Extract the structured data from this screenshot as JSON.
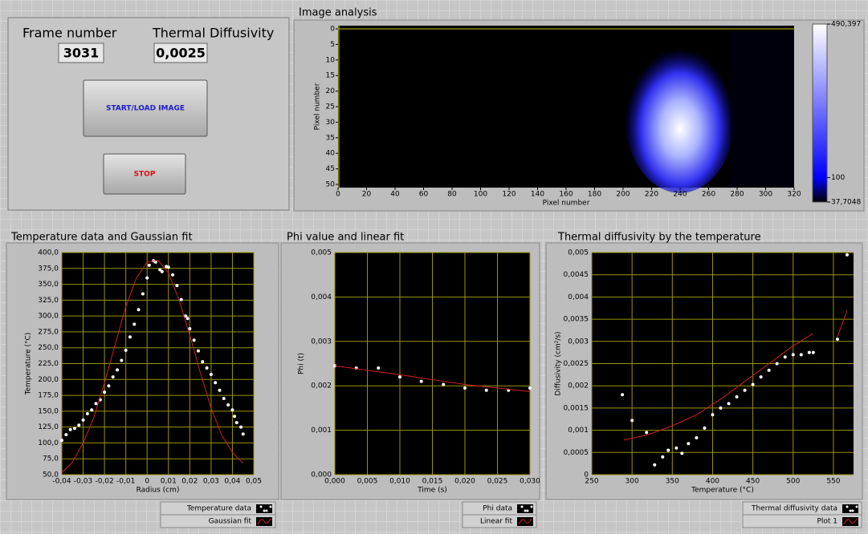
{
  "controls": {
    "frame_number": {
      "label": "Frame number",
      "value": "3031"
    },
    "thermal_diffusivity": {
      "label": "Thermal Diffusivity",
      "value": "0,0025"
    },
    "buttons": [
      "START/LOAD IMAGE",
      "STOP"
    ]
  },
  "chart_data": [
    {
      "type": "heatmap",
      "title": "Image analysis",
      "xlabel": "Pixel number",
      "ylabel": "Pixel number",
      "xlim": [
        0,
        320
      ],
      "xticks": [
        0,
        20,
        40,
        60,
        80,
        100,
        120,
        140,
        160,
        180,
        200,
        220,
        240,
        260,
        280,
        300,
        320
      ],
      "ylim": [
        0,
        50
      ],
      "y_inverted": true,
      "yticks": [
        0,
        5,
        10,
        15,
        20,
        25,
        30,
        35,
        40,
        45,
        50
      ],
      "grid": false,
      "zlim": [
        37.7048,
        490.397
      ],
      "zticks": [
        {
          "value": 37.7048,
          "label": "37,7048"
        },
        100,
        {
          "value": 490.397,
          "label": "490,397"
        }
      ],
      "colormap": [
        "#000000",
        "#0000ff",
        "#ffffff"
      ]
    },
    {
      "type": "scatter",
      "title": "Temperature data and Gaussian fit",
      "xlabel": "Radius (cm)",
      "ylabel": "Temperature (°C)",
      "xlim": [
        -0.04,
        0.05
      ],
      "xticks": [
        {
          "value": -0.04,
          "label": "-0,04"
        },
        {
          "value": -0.03,
          "label": "-0,03"
        },
        {
          "value": -0.02,
          "label": "-0,02"
        },
        {
          "value": -0.01,
          "label": "-0,01"
        },
        0,
        {
          "value": 0.01,
          "label": "0,01"
        },
        {
          "value": 0.02,
          "label": "0,02"
        },
        {
          "value": 0.03,
          "label": "0,03"
        },
        {
          "value": 0.04,
          "label": "0,04"
        },
        {
          "value": 0.05,
          "label": "0,05"
        }
      ],
      "ylim": [
        50,
        400
      ],
      "yticks": [
        {
          "value": 50,
          "label": "50,0"
        },
        {
          "value": 75,
          "label": "75,0"
        },
        {
          "value": 100,
          "label": "100,0"
        },
        {
          "value": 125,
          "label": "125,0"
        },
        {
          "value": 150,
          "label": "150,0"
        },
        {
          "value": 175,
          "label": "175,0"
        },
        {
          "value": 200,
          "label": "200,0"
        },
        {
          "value": 225,
          "label": "225,0"
        },
        {
          "value": 250,
          "label": "250,0"
        },
        {
          "value": 275,
          "label": "275,0"
        },
        {
          "value": 300,
          "label": "300,0"
        },
        {
          "value": 325,
          "label": "325,0"
        },
        {
          "value": 350,
          "label": "350,0"
        },
        {
          "value": 375,
          "label": "375,0"
        },
        {
          "value": 400,
          "label": "400,0"
        }
      ],
      "grid": true,
      "series": [
        {
          "name": "Temperature data",
          "style": "markers",
          "color": "#ffffff",
          "x": [
            -0.04,
            -0.038,
            -0.036,
            -0.034,
            -0.032,
            -0.03,
            -0.028,
            -0.026,
            -0.024,
            -0.022,
            -0.02,
            -0.018,
            -0.016,
            -0.014,
            -0.012,
            -0.01,
            -0.008,
            -0.006,
            -0.004,
            -0.002,
            0,
            0.001,
            0.003,
            0.004,
            0.006,
            0.007,
            0.009,
            0.01,
            0.012,
            0.014,
            0.016,
            0.018,
            0.019,
            0.02,
            0.022,
            0.024,
            0.026,
            0.028,
            0.03,
            0.032,
            0.034,
            0.036,
            0.038,
            0.04,
            0.041,
            0.042,
            0.044,
            0.045
          ],
          "values": [
            104,
            113,
            121,
            123,
            128,
            136,
            146,
            152,
            162,
            168,
            180,
            190,
            204,
            215,
            230,
            246,
            267,
            287,
            310,
            335,
            360,
            380,
            387,
            385,
            373,
            370,
            378,
            377,
            365,
            348,
            326,
            300,
            296,
            280,
            262,
            245,
            228,
            218,
            208,
            195,
            183,
            170,
            160,
            152,
            142,
            132,
            125,
            114
          ]
        },
        {
          "name": "Gaussian fit",
          "style": "line",
          "color": "#d02020",
          "x": [
            -0.04,
            -0.035,
            -0.03,
            -0.025,
            -0.02,
            -0.015,
            -0.01,
            -0.005,
            0,
            0.005,
            0.01,
            0.015,
            0.02,
            0.025,
            0.03,
            0.035,
            0.04,
            0.045
          ],
          "values": [
            53,
            70,
            100,
            140,
            195,
            255,
            315,
            360,
            385,
            388,
            368,
            325,
            270,
            210,
            155,
            112,
            85,
            68
          ]
        }
      ]
    },
    {
      "type": "scatter",
      "title": "Phi value and linear fit",
      "xlabel": "Time (s)",
      "ylabel": "Phi (t)",
      "xlim": [
        0,
        0.03
      ],
      "xticks": [
        {
          "value": 0,
          "label": "0,000"
        },
        {
          "value": 0.005,
          "label": "0,005"
        },
        {
          "value": 0.01,
          "label": "0,010"
        },
        {
          "value": 0.015,
          "label": "0,015"
        },
        {
          "value": 0.02,
          "label": "0,020"
        },
        {
          "value": 0.025,
          "label": "0,025"
        },
        {
          "value": 0.03,
          "label": "0,030"
        }
      ],
      "ylim": [
        0,
        0.005
      ],
      "yticks": [
        {
          "value": 0,
          "label": "0,000"
        },
        {
          "value": 0.001,
          "label": "0,001"
        },
        {
          "value": 0.002,
          "label": "0,002"
        },
        {
          "value": 0.003,
          "label": "0,003"
        },
        {
          "value": 0.004,
          "label": "0,004"
        },
        {
          "value": 0.005,
          "label": "0,005"
        }
      ],
      "grid": true,
      "series": [
        {
          "name": "Phi data",
          "style": "markers",
          "color": "#ffffff",
          "x": [
            0,
            0.0033,
            0.0067,
            0.01,
            0.0133,
            0.0167,
            0.02,
            0.0233,
            0.0267,
            0.03
          ],
          "values": [
            0.00245,
            0.0024,
            0.0024,
            0.0022,
            0.0021,
            0.00203,
            0.00195,
            0.0019,
            0.0019,
            0.00195
          ]
        },
        {
          "name": "Linear fit",
          "style": "line",
          "color": "#d02020",
          "x": [
            0,
            0.01,
            0.02,
            0.03
          ],
          "values": [
            0.00245,
            0.00225,
            0.00203,
            0.00187
          ]
        }
      ]
    },
    {
      "type": "scatter",
      "title": "Thermal diffusivity by the temperature",
      "xlabel": "Temperature (°C)",
      "ylabel": "Diffusivity (cm²/s)",
      "xlim": [
        250,
        575
      ],
      "xticks": [
        250,
        300,
        350,
        400,
        450,
        500,
        550
      ],
      "ylim": [
        0,
        0.005
      ],
      "yticks": [
        0,
        {
          "value": 0.0005,
          "label": "0,0005"
        },
        {
          "value": 0.001,
          "label": "0,001"
        },
        {
          "value": 0.0015,
          "label": "0,0015"
        },
        {
          "value": 0.002,
          "label": "0,002"
        },
        {
          "value": 0.0025,
          "label": "0,0025"
        },
        {
          "value": 0.003,
          "label": "0,003"
        },
        {
          "value": 0.0035,
          "label": "0,0035"
        },
        {
          "value": 0.004,
          "label": "0,004"
        },
        {
          "value": 0.0045,
          "label": "0,0045"
        },
        {
          "value": 0.005,
          "label": "0,005"
        }
      ],
      "grid": true,
      "series": [
        {
          "name": "Thermal diffusivity data",
          "style": "markers",
          "color": "#ffffff",
          "x": [
            288,
            300,
            318,
            328,
            338,
            345,
            355,
            362,
            370,
            380,
            390,
            400,
            410,
            420,
            430,
            440,
            450,
            460,
            470,
            480,
            490,
            500,
            510,
            520,
            525,
            555,
            567
          ],
          "values": [
            0.0018,
            0.00122,
            0.00095,
            0.00022,
            0.0004,
            0.00055,
            0.0006,
            0.00048,
            0.0007,
            0.00083,
            0.00105,
            0.00135,
            0.0015,
            0.0016,
            0.00175,
            0.0019,
            0.00203,
            0.0022,
            0.00235,
            0.0025,
            0.00265,
            0.0027,
            0.0027,
            0.00275,
            0.00275,
            0.00305,
            0.00495
          ]
        },
        {
          "name": "Plot 1",
          "style": "line",
          "color": "#d02020",
          "x": [
            290,
            320,
            350,
            380,
            410,
            440,
            470,
            500,
            525,
            540,
            555,
            567
          ],
          "values": [
            0.00078,
            0.0009,
            0.0011,
            0.00135,
            0.0017,
            0.0021,
            0.0025,
            0.0029,
            0.00318,
            null,
            0.0031,
            0.0037
          ]
        }
      ]
    }
  ]
}
